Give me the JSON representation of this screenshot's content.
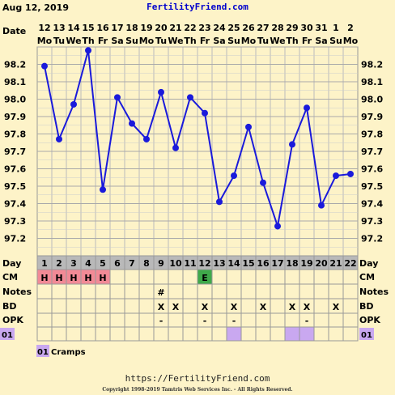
{
  "header": {
    "date": "Aug 12, 2019",
    "site": "FertilityFriend.com",
    "date_row_label": "Date"
  },
  "chart_data": {
    "type": "line",
    "dates": [
      "12",
      "13",
      "14",
      "15",
      "16",
      "17",
      "18",
      "19",
      "20",
      "21",
      "22",
      "23",
      "24",
      "25",
      "26",
      "27",
      "28",
      "29",
      "30",
      "31",
      "1",
      "2"
    ],
    "weekdays": [
      "Mo",
      "Tu",
      "We",
      "Th",
      "Fr",
      "Sa",
      "Su",
      "Mo",
      "Tu",
      "We",
      "Th",
      "Fr",
      "Sa",
      "Su",
      "Mo",
      "Tu",
      "We",
      "Th",
      "Fr",
      "Sa",
      "Su",
      "Mo"
    ],
    "cycle_days": [
      1,
      2,
      3,
      4,
      5,
      6,
      7,
      8,
      9,
      10,
      11,
      12,
      13,
      14,
      15,
      16,
      17,
      18,
      19,
      20,
      21,
      22
    ],
    "temps": [
      98.19,
      97.77,
      97.97,
      98.28,
      97.48,
      98.01,
      97.86,
      97.77,
      98.04,
      97.72,
      98.01,
      97.92,
      97.41,
      97.56,
      97.84,
      97.52,
      97.27,
      97.74,
      97.95,
      97.39,
      97.56,
      97.57
    ],
    "y_ticks": [
      "98.2",
      "98.1",
      "98.0",
      "97.9",
      "97.8",
      "97.7",
      "97.6",
      "97.5",
      "97.4",
      "97.3",
      "97.2"
    ],
    "ylim": [
      97.1,
      98.3
    ],
    "grid": true,
    "line_color": "#1a1adb"
  },
  "rows": {
    "day": {
      "label": "Day"
    },
    "cm": {
      "label": "CM",
      "values": [
        "H",
        "H",
        "H",
        "H",
        "H",
        "",
        "",
        "",
        "",
        "",
        "",
        "E",
        "",
        "",
        "",
        "",
        "",
        "",
        "",
        "",
        "",
        ""
      ]
    },
    "notes": {
      "label": "Notes",
      "values": [
        "",
        "",
        "",
        "",
        "",
        "",
        "",
        "",
        "#",
        "",
        "",
        "",
        "",
        "",
        "",
        "",
        "",
        "",
        "",
        "",
        "",
        ""
      ]
    },
    "bd": {
      "label": "BD",
      "values": [
        "",
        "",
        "",
        "",
        "",
        "",
        "",
        "",
        "X",
        "X",
        "",
        "X",
        "",
        "X",
        "",
        "X",
        "",
        "X",
        "X",
        "",
        "X",
        ""
      ]
    },
    "opk": {
      "label": "OPK",
      "values": [
        "",
        "",
        "",
        "",
        "",
        "",
        "",
        "",
        "-",
        "",
        "",
        "-",
        "",
        "-",
        "",
        "",
        "",
        "",
        "-",
        "",
        "",
        ""
      ]
    },
    "symptom": {
      "label": "01",
      "marked": [
        false,
        false,
        false,
        false,
        false,
        false,
        false,
        false,
        false,
        false,
        false,
        false,
        false,
        true,
        false,
        false,
        false,
        true,
        true,
        false,
        false,
        false
      ]
    }
  },
  "legend": {
    "code": "01",
    "text": "Cramps"
  },
  "footer": {
    "url": "https://FertilityFriend.com",
    "copyright": "Copyright 1998-2019 Tamtris Web Services Inc. - All Rights Reserved."
  },
  "colors": {
    "background": "#fdf3c8",
    "cm_h": "#f28a96",
    "cm_e": "#3fa94a",
    "symptom": "#c9a8f0",
    "day_header": "#b9b9b9",
    "title_blue": "#0000cc"
  }
}
